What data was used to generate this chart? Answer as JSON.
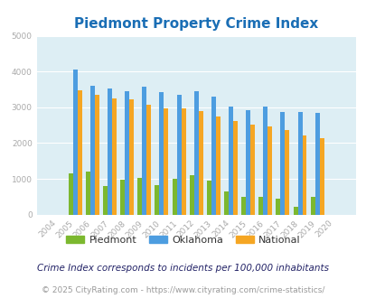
{
  "title": "Piedmont Property Crime Index",
  "years": [
    "2004",
    "2005",
    "2006",
    "2007",
    "2008",
    "2009",
    "2010",
    "2011",
    "2012",
    "2013",
    "2014",
    "2015",
    "2016",
    "2017",
    "2018",
    "2019",
    "2020"
  ],
  "piedmont": [
    0,
    1150,
    1200,
    800,
    975,
    1020,
    820,
    1010,
    1100,
    950,
    650,
    500,
    490,
    450,
    220,
    500,
    0
  ],
  "oklahoma": [
    0,
    4050,
    3600,
    3530,
    3450,
    3580,
    3420,
    3360,
    3440,
    3300,
    3020,
    2920,
    3020,
    2880,
    2880,
    2840,
    0
  ],
  "national": [
    0,
    3480,
    3360,
    3260,
    3210,
    3060,
    2970,
    2960,
    2900,
    2740,
    2620,
    2510,
    2470,
    2370,
    2220,
    2130,
    0
  ],
  "bar_color_piedmont": "#7cb82f",
  "bar_color_oklahoma": "#4d9de0",
  "bar_color_national": "#f5a623",
  "ylim": [
    0,
    5000
  ],
  "yticks": [
    0,
    1000,
    2000,
    3000,
    4000,
    5000
  ],
  "plot_bg": "#ddeef4",
  "grid_color": "#ffffff",
  "title_color": "#1a6eb5",
  "tick_color": "#aaaaaa",
  "subtitle": "Crime Index corresponds to incidents per 100,000 inhabitants",
  "footer": "© 2025 CityRating.com - https://www.cityrating.com/crime-statistics/",
  "legend_labels": [
    "Piedmont",
    "Oklahoma",
    "National"
  ],
  "title_fontsize": 11,
  "subtitle_fontsize": 7.5,
  "footer_fontsize": 6.5
}
